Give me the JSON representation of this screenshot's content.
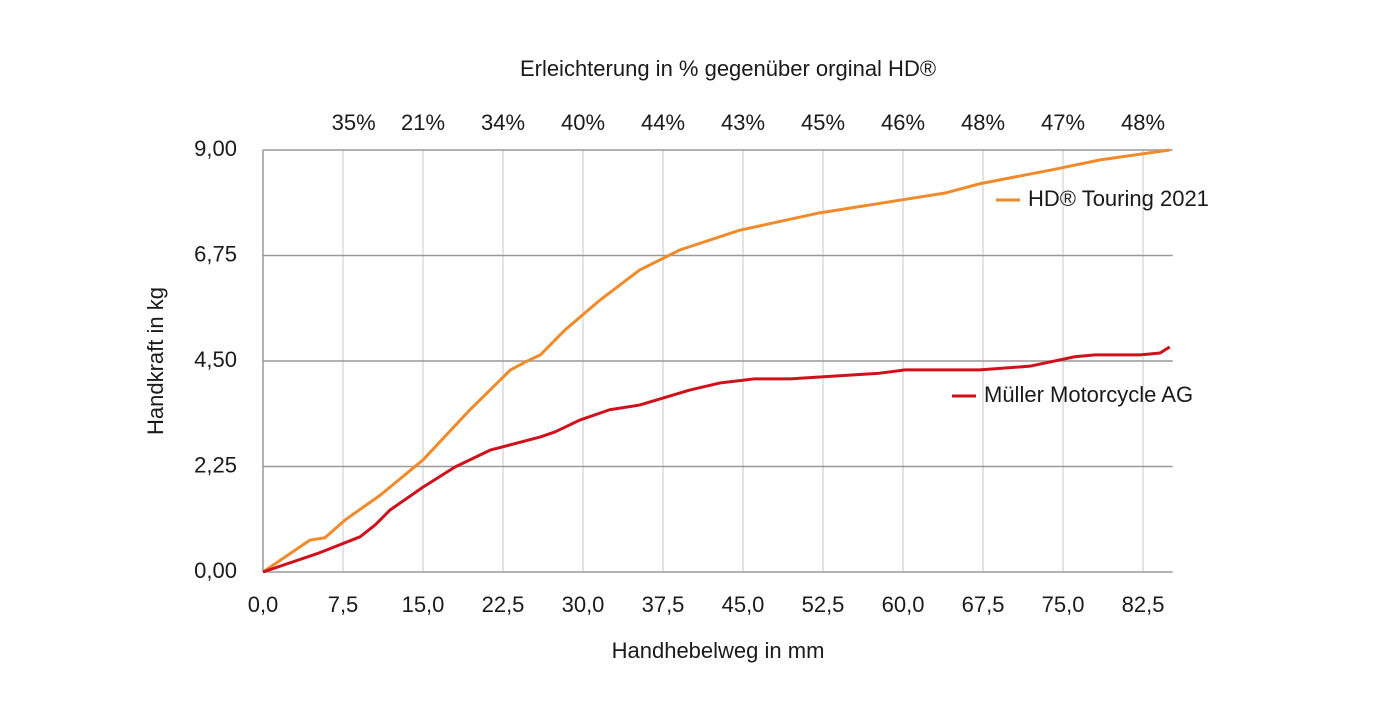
{
  "chart_data": {
    "type": "line",
    "title": "Erleichterung in % gegenüber orginal HD®",
    "top_labels": {
      "x": [
        8.5,
        15,
        22.5,
        30,
        37.5,
        45,
        52.5,
        60,
        67.5,
        75,
        82.5
      ],
      "labels": [
        "35%",
        "21%",
        "34%",
        "40%",
        "44%",
        "43%",
        "45%",
        "46%",
        "48%",
        "47%",
        "48%"
      ]
    },
    "x_label": "Handhebelweg in mm",
    "y_label": "Handkraft in kg",
    "xlim": [
      0,
      85
    ],
    "ylim": [
      0,
      9
    ],
    "xticks": [
      {
        "value": 0,
        "label": "0,0"
      },
      {
        "value": 7.5,
        "label": "7,5"
      },
      {
        "value": 15,
        "label": "15,0"
      },
      {
        "value": 22.5,
        "label": "22,5"
      },
      {
        "value": 30,
        "label": "30,0"
      },
      {
        "value": 37.5,
        "label": "37,5"
      },
      {
        "value": 45,
        "label": "45,0"
      },
      {
        "value": 52.5,
        "label": "52,5"
      },
      {
        "value": 60,
        "label": "60,0"
      },
      {
        "value": 67.5,
        "label": "67,5"
      },
      {
        "value": 75,
        "label": "75,0"
      },
      {
        "value": 82.5,
        "label": "82,5"
      }
    ],
    "yticks": [
      {
        "value": 0,
        "label": "0,00"
      },
      {
        "value": 2.25,
        "label": "2,25"
      },
      {
        "value": 4.5,
        "label": "4,50"
      },
      {
        "value": 6.75,
        "label": "6,75"
      },
      {
        "value": 9,
        "label": "9,00"
      }
    ],
    "grid": true,
    "legend": "right",
    "series": [
      {
        "name": "HD® Touring 2021",
        "color": "#f08a2a",
        "x": [
          0,
          4.4,
          5.8,
          7.7,
          11,
          15,
          19.4,
          23.2,
          24.6,
          26,
          28.3,
          31.6,
          35.3,
          39.1,
          44.7,
          52.2,
          59.7,
          63.9,
          67.2,
          73.8,
          78.5,
          85
        ],
        "values": [
          0,
          0.68,
          0.73,
          1.11,
          1.64,
          2.39,
          3.46,
          4.31,
          4.48,
          4.63,
          5.16,
          5.8,
          6.44,
          6.87,
          7.29,
          7.66,
          7.93,
          8.08,
          8.28,
          8.57,
          8.79,
          9.0
        ]
      },
      {
        "name": "Müller Motorcycle AG",
        "color": "#d0101b",
        "x": [
          0,
          5.3,
          9.1,
          10.5,
          11.9,
          15,
          18,
          21.3,
          26,
          27.4,
          29.7,
          32.5,
          35.3,
          40,
          42.8,
          46.1,
          49.4,
          52.2,
          57.8,
          60.2,
          67.2,
          71.9,
          76.1,
          78,
          82.2,
          84.1,
          85
        ],
        "values": [
          0,
          0.41,
          0.75,
          1.0,
          1.32,
          1.81,
          2.24,
          2.6,
          2.88,
          2.99,
          3.24,
          3.46,
          3.56,
          3.88,
          4.03,
          4.12,
          4.12,
          4.16,
          4.24,
          4.31,
          4.31,
          4.39,
          4.59,
          4.63,
          4.63,
          4.67,
          4.8
        ]
      }
    ]
  }
}
